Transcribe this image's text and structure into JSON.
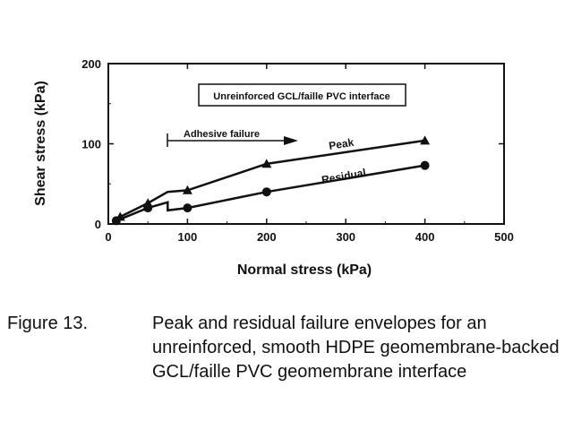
{
  "chart_data": {
    "type": "line",
    "xlabel": "Normal stress (kPa)",
    "ylabel": "Shear stress (kPa)",
    "xlim": [
      0,
      500
    ],
    "ylim": [
      0,
      200
    ],
    "xticks": [
      "0",
      "100",
      "200",
      "300",
      "400",
      "500"
    ],
    "yticks": [
      "0",
      "100",
      "200"
    ],
    "grid": false,
    "legend_box": "Unreinforced GCL/faille PVC interface",
    "annotation": "Adhesive failure",
    "series": [
      {
        "name": "Peak",
        "marker": "triangle",
        "x": [
          15,
          50,
          75,
          100,
          200,
          400
        ],
        "y": [
          9,
          26,
          40,
          42,
          75,
          104
        ],
        "markers_x": [
          15,
          50,
          100,
          200,
          400
        ],
        "markers_y": [
          9,
          26,
          42,
          75,
          104
        ]
      },
      {
        "name": "Residual",
        "marker": "circle",
        "x": [
          10,
          50,
          75,
          75,
          100,
          200,
          400
        ],
        "y": [
          4,
          20,
          27,
          17,
          20,
          40,
          73
        ],
        "markers_x": [
          10,
          50,
          100,
          200,
          400
        ],
        "markers_y": [
          4,
          20,
          20,
          40,
          73
        ]
      }
    ]
  },
  "caption": {
    "label": "Figure 13.",
    "lines": [
      "Peak and residual failure envelopes for an",
      "unreinforced, smooth HDPE geomembrane-backed",
      "GCL/faille PVC geomembrane interface"
    ]
  }
}
